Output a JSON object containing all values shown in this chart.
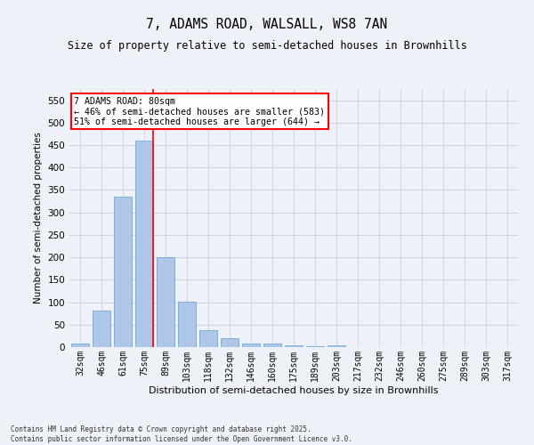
{
  "title": "7, ADAMS ROAD, WALSALL, WS8 7AN",
  "subtitle": "Size of property relative to semi-detached houses in Brownhills",
  "xlabel": "Distribution of semi-detached houses by size in Brownhills",
  "ylabel": "Number of semi-detached properties",
  "categories": [
    "32sqm",
    "46sqm",
    "61sqm",
    "75sqm",
    "89sqm",
    "103sqm",
    "118sqm",
    "132sqm",
    "146sqm",
    "160sqm",
    "175sqm",
    "189sqm",
    "203sqm",
    "217sqm",
    "232sqm",
    "246sqm",
    "260sqm",
    "275sqm",
    "289sqm",
    "303sqm",
    "317sqm"
  ],
  "values": [
    8,
    82,
    335,
    460,
    200,
    102,
    37,
    19,
    8,
    7,
    4,
    1,
    4,
    0,
    0,
    0,
    0,
    0,
    0,
    0,
    0
  ],
  "bar_color": "#aec6e8",
  "bar_edge_color": "#5a9fd4",
  "grid_color": "#c8d0dc",
  "background_color": "#eef2f8",
  "marker_bin_index": 3,
  "annotation_title": "7 ADAMS ROAD: 80sqm",
  "annotation_line1": "← 46% of semi-detached houses are smaller (583)",
  "annotation_line2": "51% of semi-detached houses are larger (644) →",
  "footer1": "Contains HM Land Registry data © Crown copyright and database right 2025.",
  "footer2": "Contains public sector information licensed under the Open Government Licence v3.0.",
  "ylim": [
    0,
    575
  ],
  "yticks": [
    0,
    50,
    100,
    150,
    200,
    250,
    300,
    350,
    400,
    450,
    500,
    550
  ]
}
